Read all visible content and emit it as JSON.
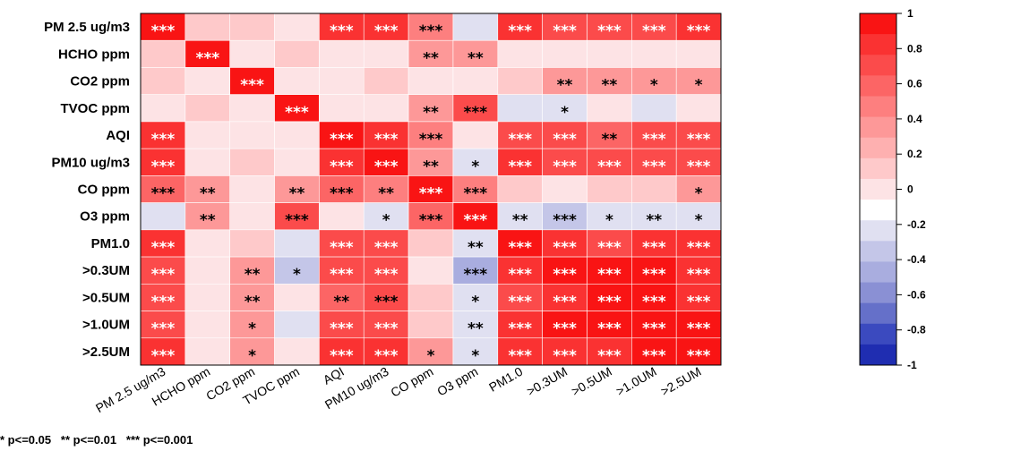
{
  "chart_data": {
    "type": "heatmap",
    "rows": [
      "PM 2.5 ug/m3",
      "HCHO ppm",
      "CO2 ppm",
      "TVOC ppm",
      "AQI",
      "PM10 ug/m3",
      "CO ppm",
      "O3 ppm",
      "PM1.0",
      ">0.3UM",
      ">0.5UM",
      ">1.0UM",
      ">2.5UM"
    ],
    "columns": [
      "PM 2.5 ug/m3",
      "HCHO ppm",
      "CO2 ppm",
      "TVOC ppm",
      "AQI",
      "PM10 ug/m3",
      "CO ppm",
      "O3 ppm",
      "PM1.0",
      ">0.3UM",
      ">0.5UM",
      ">1.0UM",
      ">2.5UM"
    ],
    "values": [
      [
        1.0,
        0.15,
        0.15,
        0.05,
        0.85,
        0.85,
        0.45,
        -0.2,
        0.85,
        0.8,
        0.8,
        0.8,
        0.85
      ],
      [
        0.15,
        1.0,
        0.0,
        0.15,
        0.05,
        0.05,
        0.35,
        0.35,
        0.05,
        0.05,
        0.05,
        0.0,
        0.05
      ],
      [
        0.15,
        0.0,
        1.0,
        0.05,
        0.0,
        0.15,
        0.0,
        0.05,
        0.15,
        0.35,
        0.35,
        0.35,
        0.35
      ],
      [
        0.05,
        0.15,
        0.05,
        1.0,
        0.05,
        0.0,
        0.35,
        0.7,
        -0.2,
        -0.3,
        0.05,
        -0.2,
        0.05
      ],
      [
        0.85,
        0.05,
        0.0,
        0.05,
        1.0,
        0.9,
        0.45,
        0.05,
        0.8,
        0.75,
        0.65,
        0.8,
        0.8
      ],
      [
        0.85,
        0.05,
        0.15,
        0.0,
        0.9,
        1.0,
        0.35,
        -0.2,
        0.85,
        0.8,
        0.75,
        0.8,
        0.8
      ],
      [
        0.6,
        0.35,
        0.0,
        0.35,
        0.6,
        0.45,
        1.0,
        0.55,
        0.15,
        0.05,
        0.15,
        0.15,
        0.35
      ],
      [
        -0.2,
        0.35,
        0.05,
        0.7,
        0.05,
        -0.2,
        0.6,
        1.0,
        -0.3,
        -0.35,
        -0.3,
        -0.3,
        -0.3
      ],
      [
        0.85,
        0.05,
        0.15,
        -0.2,
        0.8,
        0.8,
        0.15,
        -0.3,
        1.0,
        0.9,
        0.8,
        0.85,
        0.85
      ],
      [
        0.8,
        0.05,
        0.35,
        -0.35,
        0.8,
        0.8,
        0.05,
        -0.45,
        0.9,
        1.0,
        0.95,
        0.95,
        0.9
      ],
      [
        0.8,
        0.05,
        0.35,
        0.05,
        0.6,
        0.7,
        0.15,
        -0.3,
        0.8,
        0.9,
        1.0,
        0.95,
        0.9
      ],
      [
        0.8,
        0.0,
        0.35,
        -0.2,
        0.8,
        0.8,
        0.15,
        -0.3,
        0.85,
        0.95,
        0.95,
        1.0,
        0.95
      ],
      [
        0.85,
        0.05,
        0.35,
        0.05,
        0.85,
        0.85,
        0.35,
        -0.3,
        0.85,
        0.9,
        0.9,
        0.95,
        1.0
      ]
    ],
    "significance": [
      [
        "***",
        "",
        "",
        "",
        "***",
        "***",
        "***",
        "",
        "***",
        "***",
        "***",
        "***",
        "***"
      ],
      [
        "",
        "***",
        "",
        "",
        "",
        "",
        "**",
        "**",
        "",
        "",
        "",
        "",
        ""
      ],
      [
        "",
        "",
        "***",
        "",
        "",
        "",
        "",
        "",
        "",
        "**",
        "**",
        "*",
        "*"
      ],
      [
        "",
        "",
        "",
        "***",
        "",
        "",
        "**",
        "***",
        "",
        "*",
        "",
        "",
        ""
      ],
      [
        "***",
        "",
        "",
        "",
        "***",
        "***",
        "***",
        "",
        "***",
        "***",
        "**",
        "***",
        "***"
      ],
      [
        "***",
        "",
        "",
        "",
        "***",
        "***",
        "**",
        "*",
        "***",
        "***",
        "***",
        "***",
        "***"
      ],
      [
        "***",
        "**",
        "",
        "**",
        "***",
        "**",
        "***",
        "***",
        "",
        "",
        "",
        "",
        "*"
      ],
      [
        "",
        "**",
        "",
        "***",
        "",
        "*",
        "***",
        "***",
        "**",
        "***",
        "*",
        "**",
        "*"
      ],
      [
        "***",
        "",
        "",
        "",
        "***",
        "***",
        "",
        "**",
        "***",
        "***",
        "***",
        "***",
        "***"
      ],
      [
        "***",
        "",
        "**",
        "*",
        "***",
        "***",
        "",
        "***",
        "***",
        "***",
        "***",
        "***",
        "***"
      ],
      [
        "***",
        "",
        "**",
        "",
        "**",
        "***",
        "",
        "*",
        "***",
        "***",
        "***",
        "***",
        "***"
      ],
      [
        "***",
        "",
        "*",
        "",
        "***",
        "***",
        "",
        "**",
        "***",
        "***",
        "***",
        "***",
        "***"
      ],
      [
        "***",
        "",
        "*",
        "",
        "***",
        "***",
        "*",
        "*",
        "***",
        "***",
        "***",
        "***",
        "***"
      ]
    ],
    "colorbar": {
      "ticks": [
        "1",
        "0.8",
        "0.6",
        "0.4",
        "0.2",
        "0",
        "-0.2",
        "-0.4",
        "-0.6",
        "-0.8",
        "-1"
      ],
      "range": [
        -1,
        1
      ],
      "colors": [
        "#1f2db1",
        "#3b4abf",
        "#6570c9",
        "#8a90d4",
        "#a9addf",
        "#c4c6e8",
        "#e0e0f1",
        "#ffffff",
        "#fde3e5",
        "#fec9ca",
        "#feb0b0",
        "#fd9898",
        "#fd7f7f",
        "#fc6565",
        "#fb4b4b",
        "#fa3232",
        "#f91414"
      ]
    },
    "colors": {
      "positive_max": "#ff1010",
      "negative_max": "#1f2db1",
      "zero": "#ffffff"
    }
  },
  "footnote": "* p<=0.05   ** p<=0.01   *** p<=0.001"
}
